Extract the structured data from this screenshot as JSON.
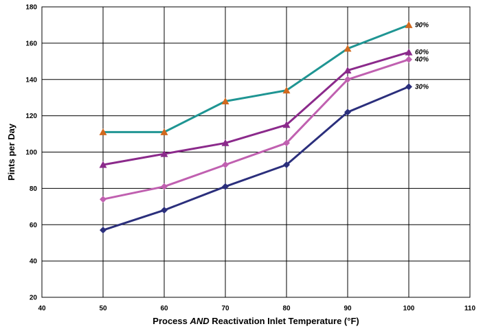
{
  "chart_data": {
    "type": "line",
    "title": "",
    "xlabel_parts": {
      "before": "Process ",
      "emphasis": "AND",
      "after": " Reactivation Inlet Temperature (°F)"
    },
    "ylabel": "Pints per Day",
    "xlim": [
      40,
      110
    ],
    "ylim": [
      20,
      180
    ],
    "xticks": [
      40,
      50,
      60,
      70,
      80,
      90,
      100,
      110
    ],
    "yticks": [
      20,
      40,
      60,
      80,
      100,
      120,
      140,
      160,
      180
    ],
    "grid": true,
    "legend": "none",
    "x": [
      50,
      60,
      70,
      80,
      90,
      100
    ],
    "series": [
      {
        "name": "90%",
        "color": "#1f9593",
        "marker_color": "#d2691e",
        "marker": "triangle-marker",
        "values": [
          111,
          111,
          128,
          134,
          157,
          170
        ]
      },
      {
        "name": "60%",
        "color": "#8b2a8b",
        "marker_color": "#8b2a8b",
        "marker": "triangle-marker",
        "values": [
          93,
          99,
          105,
          115,
          145,
          155
        ]
      },
      {
        "name": "40%",
        "color": "#c060b0",
        "marker_color": "#c060b0",
        "marker": "diamond-marker",
        "values": [
          74,
          81,
          93,
          105,
          140,
          151
        ]
      },
      {
        "name": "30%",
        "color": "#2b2f7c",
        "marker_color": "#2b2f7c",
        "marker": "diamond-marker",
        "values": [
          57,
          68,
          81,
          93,
          122,
          136
        ]
      }
    ]
  }
}
